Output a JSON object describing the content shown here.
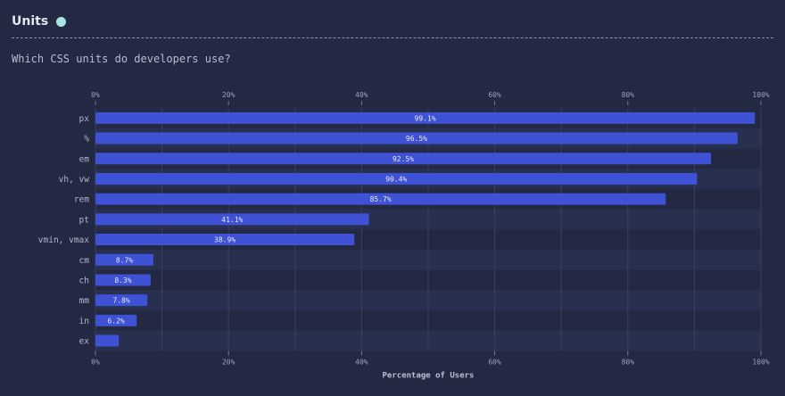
{
  "section": {
    "title": "Units",
    "question": "Which CSS units do developers use?"
  },
  "colors": {
    "bar": "#3f51d5",
    "accent_dot": "#a9e5e0"
  },
  "chart_data": {
    "type": "bar",
    "orientation": "horizontal",
    "title": "Which CSS units do developers use?",
    "xlabel": "Percentage of Users",
    "ylabel": "",
    "xlim": [
      0,
      100
    ],
    "x_ticks": [
      "0%",
      "20%",
      "40%",
      "60%",
      "80%",
      "100%"
    ],
    "grid": true,
    "categories": [
      "px",
      "%",
      "em",
      "vh, vw",
      "rem",
      "pt",
      "vmin, vmax",
      "cm",
      "ch",
      "mm",
      "in",
      "ex"
    ],
    "values": [
      99.1,
      96.5,
      92.5,
      90.4,
      85.7,
      41.1,
      38.9,
      8.7,
      8.3,
      7.8,
      6.2,
      3.5
    ],
    "data_labels": [
      "99.1%",
      "96.5%",
      "92.5%",
      "90.4%",
      "85.7%",
      "41.1%",
      "38.9%",
      "8.7%",
      "8.3%",
      "7.8%",
      "6.2%",
      ""
    ]
  }
}
